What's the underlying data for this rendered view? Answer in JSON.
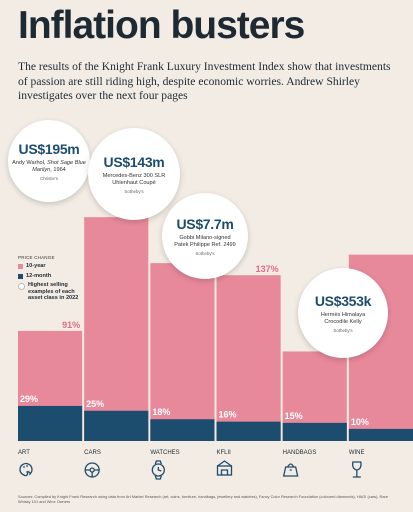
{
  "headline": "Inflation busters",
  "standfirst": "The results of the Knight Frank Luxury Investment Index show that investments of passion are still riding high, despite economic worries. Andrew Shirley investigates over the next four pages",
  "colors": {
    "ten_year": "#e8899b",
    "twelve_month": "#1d4d6e",
    "background": "#f3ece4",
    "ten_year_label": "#e36c84"
  },
  "legend": {
    "title": "PRICE CHANGE",
    "ten_year": "10-year",
    "twelve_month": "12-month",
    "highest": "Highest selling examples of each asset class in 2022"
  },
  "bubbles": [
    {
      "price": "US$195m",
      "line1": "Andy Warhol, ",
      "line1_italic": "Shot Sage Blue Marilyn",
      "line1_after": ", 1964",
      "source": "Christie's"
    },
    {
      "price": "US$143m",
      "line1": "Mercedes-Benz 300 SLR\nUhlenhaut Coupé",
      "line1_italic": "",
      "line1_after": "",
      "source": "Sotheby's"
    },
    {
      "price": "US$7.7m",
      "line1": "Gobbi Milano-signed\nPatek Philippe Ref. 2499",
      "line1_italic": "",
      "line1_after": "",
      "source": "Sotheby's"
    },
    {
      "price": "US$353k",
      "line1": "Hermès Himalaya\nCrocodile Kelly",
      "line1_italic": "",
      "line1_after": "",
      "source": "Sotheby's"
    }
  ],
  "chart_data": {
    "type": "bar",
    "categories": [
      "ART",
      "CARS",
      "WATCHES",
      "KFLII",
      "HANDBAGS",
      "WINE"
    ],
    "series": [
      {
        "name": "10-year",
        "values": [
          91,
          185,
          147,
          137,
          74,
          null
        ]
      },
      {
        "name": "12-month",
        "values": [
          29,
          25,
          18,
          16,
          15,
          10
        ]
      }
    ],
    "title": "",
    "xlabel": "",
    "ylabel": "",
    "ylim": [
      0,
      200
    ],
    "grid": false,
    "legend_position": "left"
  },
  "icons": [
    "palette-icon",
    "steering-wheel-icon",
    "watch-icon",
    "kfli-icon",
    "handbag-icon",
    "wine-glass-icon"
  ],
  "footer": "Sources: Compiled by Knight Frank Research using data from Art Market Research (art, coins, furniture, handbags, jewellery and watches), Fancy Color Research Foundation (coloured diamonds), HAGI (cars), Rare Whisky 101 and Wine Owners"
}
